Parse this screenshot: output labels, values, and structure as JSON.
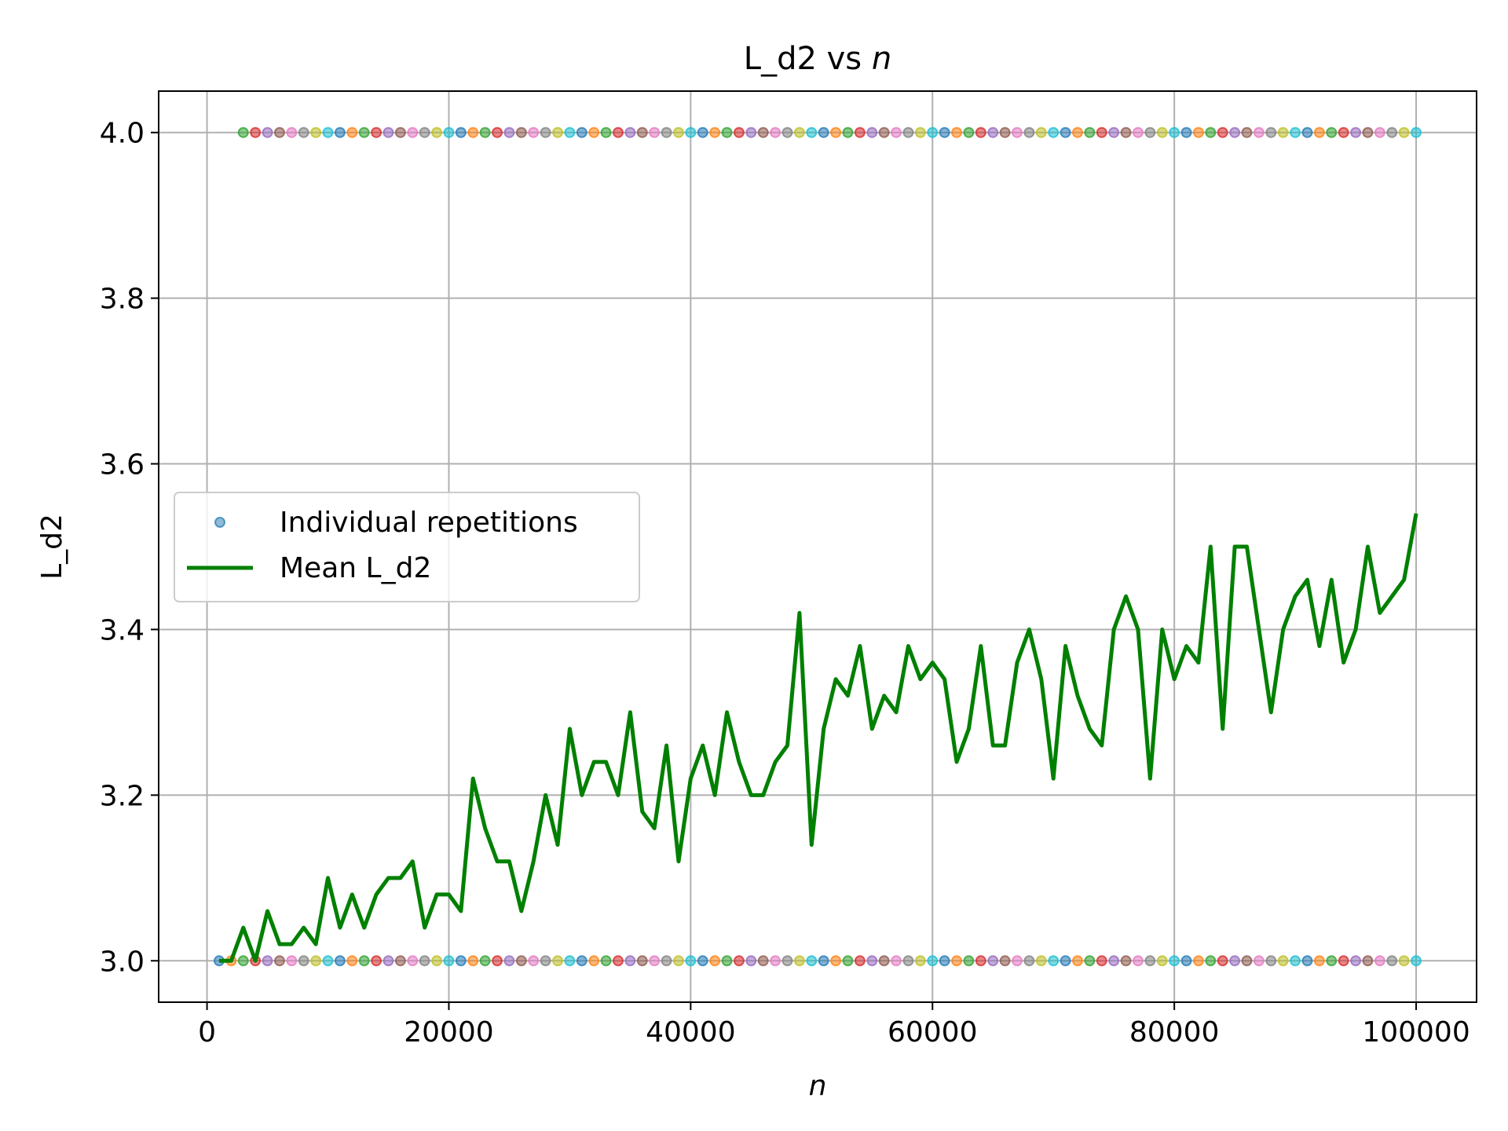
{
  "chart_data": {
    "type": "line",
    "title_prefix": "L_d2 vs ",
    "title_var": "n",
    "xlabel": "n",
    "ylabel": "L_d2",
    "xlim": [
      -4000,
      105000
    ],
    "ylim": [
      2.95,
      4.05
    ],
    "xticks": [
      0,
      20000,
      40000,
      60000,
      80000,
      100000
    ],
    "yticks": [
      3.0,
      3.2,
      3.4,
      3.6,
      3.8,
      4.0
    ],
    "grid": true,
    "legend": {
      "placement": "center-left",
      "entries": [
        "Individual repetitions",
        "Mean L_d2"
      ]
    },
    "colors": {
      "mean_line": "#008000",
      "grid": "#b0b0b0",
      "palette": [
        "#1f77b4",
        "#ff7f0e",
        "#2ca02c",
        "#d62728",
        "#9467bd",
        "#8c564b",
        "#e377c2",
        "#7f7f7f",
        "#bcbd22",
        "#17becf"
      ]
    },
    "individual_repetitions": {
      "x_start": 1000,
      "x_step": 1000,
      "x_end": 100000,
      "levels": [
        3,
        4
      ],
      "level4_start": 3000
    },
    "series": [
      {
        "name": "Mean L_d2",
        "x_start": 1000,
        "x_step": 1000,
        "values": [
          3.0,
          3.0,
          3.04,
          3.0,
          3.06,
          3.02,
          3.02,
          3.04,
          3.02,
          3.1,
          3.04,
          3.08,
          3.04,
          3.08,
          3.1,
          3.1,
          3.12,
          3.04,
          3.08,
          3.08,
          3.06,
          3.22,
          3.16,
          3.12,
          3.12,
          3.06,
          3.12,
          3.2,
          3.14,
          3.28,
          3.2,
          3.24,
          3.24,
          3.2,
          3.3,
          3.18,
          3.16,
          3.26,
          3.12,
          3.22,
          3.26,
          3.2,
          3.3,
          3.24,
          3.2,
          3.2,
          3.24,
          3.26,
          3.42,
          3.14,
          3.28,
          3.34,
          3.32,
          3.38,
          3.28,
          3.32,
          3.3,
          3.38,
          3.34,
          3.36,
          3.34,
          3.24,
          3.28,
          3.38,
          3.26,
          3.26,
          3.36,
          3.4,
          3.34,
          3.22,
          3.38,
          3.32,
          3.28,
          3.26,
          3.4,
          3.44,
          3.4,
          3.22,
          3.4,
          3.34,
          3.38,
          3.36,
          3.5,
          3.28,
          3.5,
          3.5,
          3.4,
          3.3,
          3.4,
          3.44,
          3.46,
          3.38,
          3.46,
          3.36,
          3.4,
          3.5,
          3.42,
          3.44,
          3.46,
          3.54
        ]
      }
    ]
  }
}
